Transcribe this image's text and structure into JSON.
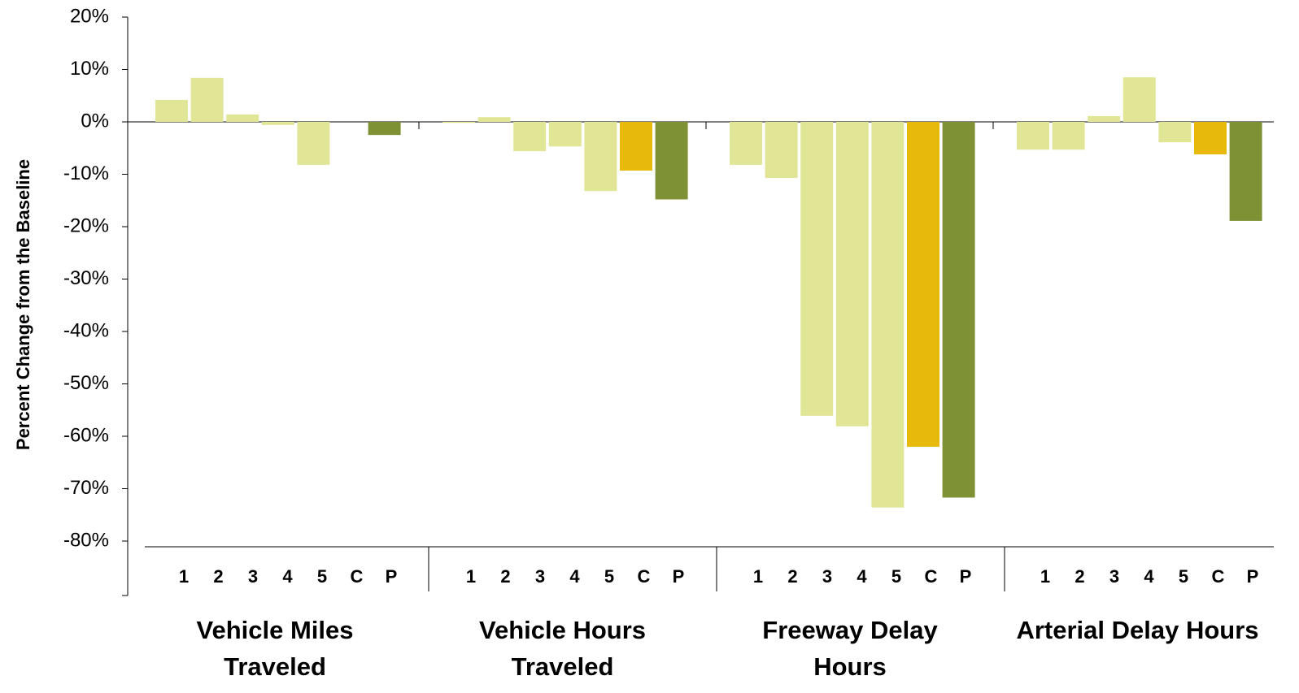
{
  "chart_data": {
    "type": "bar",
    "y_label": "Percent Change from the Baseline",
    "categories": [
      "Vehicle Miles Traveled",
      "Vehicle Hours Traveled",
      "Freeway Delay Hours",
      "Arterial Delay Hours"
    ],
    "series": [
      {
        "name": "1",
        "color": "#e1e697",
        "values": [
          4.2,
          -0.2,
          -8.2,
          -5.3
        ]
      },
      {
        "name": "2",
        "color": "#e1e697",
        "values": [
          8.4,
          0.9,
          -10.7,
          -5.3
        ]
      },
      {
        "name": "3",
        "color": "#e1e697",
        "values": [
          1.4,
          -5.6,
          -56.1,
          1.1
        ]
      },
      {
        "name": "4",
        "color": "#e1e697",
        "values": [
          -0.6,
          -4.7,
          -58.1,
          8.5
        ]
      },
      {
        "name": "5",
        "color": "#e1e697",
        "values": [
          -8.2,
          -13.2,
          -73.6,
          -3.9
        ]
      },
      {
        "name": "C",
        "color": "#e6b90a",
        "values": [
          null,
          -9.3,
          -62.0,
          -6.2
        ]
      },
      {
        "name": "P",
        "color": "#7e9135",
        "values": [
          -2.5,
          -14.8,
          -71.7,
          -18.9
        ]
      }
    ],
    "ylim": [
      -80,
      20
    ],
    "yticks": [
      {
        "value": 20,
        "label": "20%"
      },
      {
        "value": 10,
        "label": "10%"
      },
      {
        "value": 0,
        "label": "0%"
      },
      {
        "value": -10,
        "label": "-10%"
      },
      {
        "value": -20,
        "label": "-20%"
      },
      {
        "value": -30,
        "label": "-30%"
      },
      {
        "value": -40,
        "label": "-40%"
      },
      {
        "value": -50,
        "label": "-50%"
      },
      {
        "value": -60,
        "label": "-60%"
      },
      {
        "value": -70,
        "label": "-70%"
      },
      {
        "value": -80,
        "label": "-80%"
      }
    ]
  }
}
